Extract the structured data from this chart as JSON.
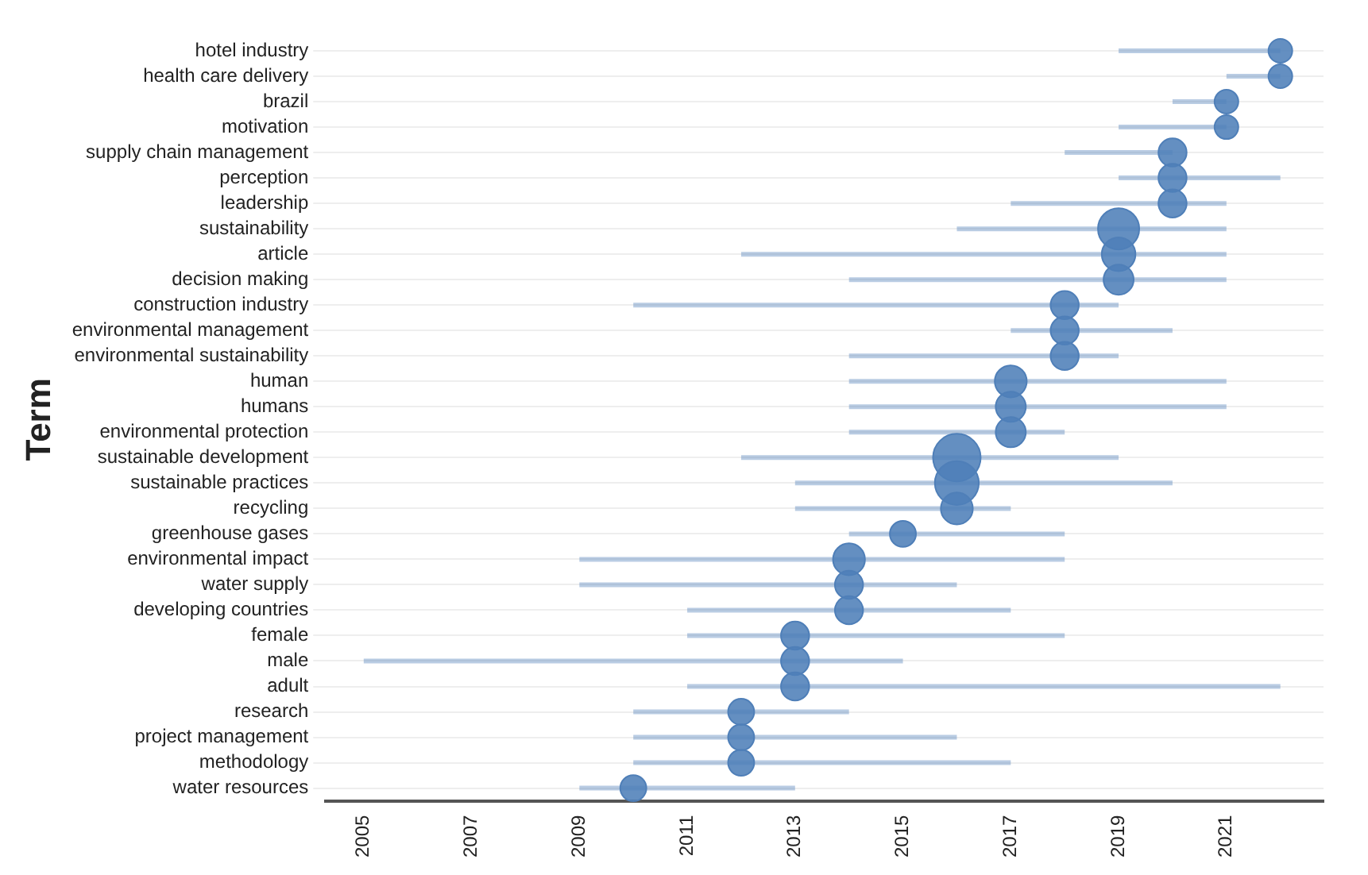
{
  "chart_data": {
    "type": "bubble",
    "orientation": "horizontal",
    "ylabel": "Term",
    "categories": [
      "hotel industry",
      "health care delivery",
      "brazil",
      "motivation",
      "supply chain management",
      "perception",
      "leadership",
      "sustainability",
      "article",
      "decision making",
      "construction industry",
      "environmental management",
      "environmental sustainability",
      "human",
      "humans",
      "environmental protection",
      "sustainable development",
      "sustainable practices",
      "recycling",
      "greenhouse gases",
      "environmental impact",
      "water supply",
      "developing countries",
      "female",
      "male",
      "adult",
      "research",
      "project management",
      "methodology",
      "water resources"
    ],
    "values": [
      2022,
      2022,
      2021,
      2021,
      2020,
      2020,
      2020,
      2019,
      2019,
      2019,
      2018,
      2018,
      2018,
      2017,
      2017,
      2017,
      2016,
      2016,
      2016,
      2015,
      2014,
      2014,
      2014,
      2013,
      2013,
      2013,
      2012,
      2012,
      2012,
      2010
    ],
    "errors": [
      [
        2019,
        2022
      ],
      [
        2021,
        2022
      ],
      [
        2020,
        2021
      ],
      [
        2019,
        2021
      ],
      [
        2018,
        2020
      ],
      [
        2019,
        2022
      ],
      [
        2017,
        2021
      ],
      [
        2016,
        2021
      ],
      [
        2012,
        2021
      ],
      [
        2014,
        2021
      ],
      [
        2010,
        2019
      ],
      [
        2017,
        2020
      ],
      [
        2014,
        2019
      ],
      [
        2014,
        2021
      ],
      [
        2014,
        2021
      ],
      [
        2014,
        2018
      ],
      [
        2012,
        2019
      ],
      [
        2013,
        2020
      ],
      [
        2013,
        2017
      ],
      [
        2014,
        2018
      ],
      [
        2009,
        2018
      ],
      [
        2009,
        2016
      ],
      [
        2011,
        2017
      ],
      [
        2011,
        2018
      ],
      [
        2005,
        2015
      ],
      [
        2011,
        2022
      ],
      [
        2010,
        2014
      ],
      [
        2010,
        2016
      ],
      [
        2010,
        2017
      ],
      [
        2009,
        2013
      ]
    ],
    "sizes": [
      0.25,
      0.25,
      0.25,
      0.25,
      0.35,
      0.35,
      0.35,
      0.75,
      0.5,
      0.4,
      0.35,
      0.35,
      0.35,
      0.45,
      0.4,
      0.4,
      1,
      0.85,
      0.45,
      0.3,
      0.45,
      0.35,
      0.35,
      0.35,
      0.35,
      0.35,
      0.3,
      0.3,
      0.3,
      0.3
    ],
    "color": "#4f7fb8",
    "xlim": [
      2004.3,
      2022.8
    ],
    "xticks": [
      2005,
      2007,
      2009,
      2011,
      2013,
      2015,
      2017,
      2019,
      2021
    ],
    "grid": "y",
    "legend": false
  }
}
